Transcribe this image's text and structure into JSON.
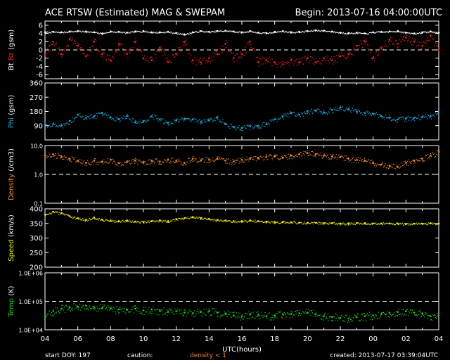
{
  "header": {
    "title": "ACE RTSW (Estimated) MAG & SWEPAM",
    "begin": "Begin: 2013-07-16 04:00:00UTC"
  },
  "footer": {
    "start_doy": "start DOY: 197",
    "caution": "caution:",
    "density_note": "density < 1",
    "created": "created: 2013-07-17 03:39:04UTC"
  },
  "colors": {
    "background": "#000000",
    "axes": "#ffffff",
    "bt": "#ffffff",
    "bz": "#ee2222",
    "phi": "#22aadd",
    "density": "#ee8833",
    "speed": "#eeee22",
    "temp": "#22cc22"
  },
  "chart_data": {
    "type": "scatter",
    "xlabel": "UTC(hours)",
    "x_tick_labels": [
      "04",
      "06",
      "08",
      "10",
      "12",
      "14",
      "16",
      "18",
      "20",
      "22",
      "00",
      "02",
      "04"
    ],
    "xlim_hours": [
      0,
      24
    ],
    "panels": [
      {
        "id": "mag",
        "ylabel_parts": [
          {
            "text": "Bt",
            "color": "#ffffff"
          },
          {
            "text": "Bz",
            "color": "#ee2222"
          },
          {
            "text": "(gsm)",
            "color": "#ffffff"
          }
        ],
        "scale": "linear",
        "ylim": [
          -7,
          7
        ],
        "y_ticks": [
          6,
          4,
          2,
          0,
          -2,
          -4,
          -6
        ],
        "y_tick_labels": [
          "6",
          "4",
          "2",
          "0",
          "-2",
          "-4",
          "-6"
        ],
        "ref_lines": [
          0
        ],
        "series": [
          {
            "name": "Bt",
            "color": "#ffffff",
            "x": [
              0,
              0.5,
              1,
              1.5,
              2,
              2.5,
              3,
              3.5,
              4,
              4.5,
              5,
              5.5,
              6,
              6.5,
              7,
              7.5,
              8,
              8.5,
              9,
              9.5,
              10,
              10.5,
              11,
              11.5,
              12,
              12.5,
              13,
              13.5,
              14,
              14.5,
              15,
              15.5,
              16,
              16.5,
              17,
              17.5,
              18,
              18.5,
              19,
              19.5,
              20,
              20.5,
              21,
              21.5,
              22,
              22.5,
              23,
              23.5,
              24
            ],
            "y": [
              4.3,
              4.4,
              4.3,
              4.5,
              4.6,
              4.5,
              4.3,
              4.0,
              4.5,
              4.4,
              4.2,
              4.5,
              4.6,
              4.3,
              4.3,
              4.4,
              4.1,
              3.8,
              4.3,
              4.6,
              4.4,
              4.6,
              4.7,
              4.5,
              4.3,
              4.6,
              4.2,
              4.1,
              4.4,
              4.6,
              4.3,
              4.4,
              4.6,
              4.8,
              4.7,
              4.5,
              4.2,
              4.1,
              4.2,
              4.0,
              4.3,
              4.4,
              4.5,
              4.6,
              4.2,
              4.0,
              4.3,
              4.5,
              4.2
            ]
          },
          {
            "name": "Bz",
            "color": "#ee2222",
            "x": [
              0,
              0.5,
              1,
              1.5,
              2,
              2.5,
              3,
              3.5,
              4,
              4.5,
              5,
              5.5,
              6,
              6.5,
              7,
              7.5,
              8,
              8.5,
              9,
              9.5,
              10,
              10.5,
              11,
              11.5,
              12,
              12.5,
              13,
              13.5,
              14,
              14.5,
              15,
              15.5,
              16,
              16.5,
              17,
              17.5,
              18,
              18.5,
              19,
              19.5,
              20,
              20.5,
              21,
              21.5,
              22,
              22.5,
              23,
              23.5,
              24
            ],
            "y": [
              -1.0,
              2.0,
              -1.0,
              2.5,
              1.0,
              -1.5,
              2.0,
              -1.0,
              -2.5,
              1.5,
              -1.0,
              2.0,
              -2.0,
              -2.5,
              0.5,
              -3.0,
              -1.0,
              2.0,
              -2.5,
              -3.0,
              -2.0,
              -1.0,
              1.5,
              -2.0,
              -1.0,
              2.0,
              -3.0,
              -2.5,
              -3.0,
              -3.5,
              -2.5,
              -3.0,
              -2.0,
              -3.0,
              -2.0,
              -2.5,
              -1.5,
              -1.0,
              1.0,
              2.0,
              -2.0,
              0.5,
              2.5,
              1.5,
              3.0,
              2.0,
              1.0,
              3.5,
              0.0
            ]
          }
        ]
      },
      {
        "id": "phi",
        "ylabel_parts": [
          {
            "text": "Phi",
            "color": "#22aadd"
          },
          {
            "text": "(gsm)",
            "color": "#ffffff"
          }
        ],
        "scale": "linear",
        "ylim": [
          0,
          360
        ],
        "y_ticks": [
          360,
          270,
          180,
          90
        ],
        "y_tick_labels": [
          "360",
          "270",
          "180",
          "90"
        ],
        "ref_lines": [],
        "series": [
          {
            "name": "Phi",
            "color": "#22aadd",
            "x": [
              0,
              0.5,
              1,
              1.5,
              2,
              2.5,
              3,
              3.5,
              4,
              4.5,
              5,
              5.5,
              6,
              6.5,
              7,
              7.5,
              8,
              8.5,
              9,
              9.5,
              10,
              10.5,
              11,
              11.5,
              12,
              12.5,
              13,
              13.5,
              14,
              14.5,
              15,
              15.5,
              16,
              16.5,
              17,
              17.5,
              18,
              18.5,
              19,
              19.5,
              20,
              20.5,
              21,
              21.5,
              22,
              22.5,
              23,
              23.5,
              24
            ],
            "y": [
              95,
              100,
              90,
              120,
              160,
              140,
              150,
              170,
              145,
              130,
              150,
              110,
              120,
              150,
              130,
              110,
              125,
              135,
              130,
              115,
              125,
              140,
              100,
              80,
              75,
              85,
              90,
              100,
              130,
              150,
              170,
              160,
              180,
              185,
              175,
              190,
              205,
              195,
              180,
              170,
              165,
              150,
              140,
              130,
              135,
              140,
              145,
              150,
              175
            ]
          }
        ]
      },
      {
        "id": "density",
        "ylabel_parts": [
          {
            "text": "Density",
            "color": "#ee8833"
          },
          {
            "text": "(/cm3)",
            "color": "#ffffff"
          }
        ],
        "scale": "log",
        "ylim": [
          0.1,
          10
        ],
        "y_ticks": [
          10,
          1,
          0.1
        ],
        "y_tick_labels": [
          "10.0",
          "1.0",
          "0.1"
        ],
        "ref_lines": [
          1
        ],
        "series": [
          {
            "name": "Density",
            "color": "#ee8833",
            "x": [
              0,
              0.5,
              1,
              1.5,
              2,
              2.5,
              3,
              3.5,
              4,
              4.5,
              5,
              5.5,
              6,
              6.5,
              7,
              7.5,
              8,
              8.5,
              9,
              9.5,
              10,
              10.5,
              11,
              11.5,
              12,
              12.5,
              13,
              13.5,
              14,
              14.5,
              15,
              15.5,
              16,
              16.5,
              17,
              17.5,
              18,
              18.5,
              19,
              19.5,
              20,
              20.5,
              21,
              21.5,
              22,
              22.5,
              23,
              23.5,
              24
            ],
            "y": [
              4.5,
              5.0,
              4.0,
              3.5,
              3.0,
              2.5,
              3.0,
              2.8,
              3.2,
              2.5,
              2.7,
              3.0,
              2.5,
              3.0,
              2.8,
              3.2,
              3.0,
              2.5,
              3.5,
              3.0,
              3.2,
              3.5,
              3.0,
              2.8,
              3.2,
              3.5,
              3.8,
              4.0,
              4.2,
              3.8,
              4.5,
              5.0,
              5.5,
              5.0,
              4.5,
              4.2,
              4.0,
              3.5,
              3.2,
              3.0,
              2.5,
              2.2,
              2.0,
              1.8,
              2.5,
              3.0,
              3.5,
              4.5,
              6.0
            ]
          }
        ]
      },
      {
        "id": "speed",
        "ylabel_parts": [
          {
            "text": "Speed",
            "color": "#eeee22"
          },
          {
            "text": "(km/s)",
            "color": "#ffffff"
          }
        ],
        "scale": "linear",
        "ylim": [
          200,
          400
        ],
        "y_ticks": [
          400,
          350,
          300,
          250,
          200
        ],
        "y_tick_labels": [
          "400",
          "350",
          "300",
          "250",
          "200"
        ],
        "ref_lines": [],
        "series": [
          {
            "name": "Speed",
            "color": "#eeee22",
            "x": [
              0,
              0.5,
              1,
              1.5,
              2,
              2.5,
              3,
              3.5,
              4,
              4.5,
              5,
              5.5,
              6,
              6.5,
              7,
              7.5,
              8,
              8.5,
              9,
              9.5,
              10,
              10.5,
              11,
              11.5,
              12,
              12.5,
              13,
              13.5,
              14,
              14.5,
              15,
              15.5,
              16,
              16.5,
              17,
              17.5,
              18,
              18.5,
              19,
              19.5,
              20,
              20.5,
              21,
              21.5,
              22,
              22.5,
              23,
              23.5,
              24
            ],
            "y": [
              380,
              390,
              385,
              375,
              368,
              362,
              370,
              362,
              360,
              358,
              360,
              356,
              355,
              358,
              360,
              358,
              365,
              368,
              372,
              368,
              365,
              362,
              360,
              358,
              358,
              360,
              358,
              356,
              355,
              355,
              354,
              353,
              352,
              352,
              351,
              351,
              350,
              350,
              351,
              351,
              350,
              350,
              350,
              350,
              349,
              349,
              349,
              350,
              349
            ]
          }
        ]
      },
      {
        "id": "temp",
        "ylabel_parts": [
          {
            "text": "Temp",
            "color": "#22cc22"
          },
          {
            "text": "(K)",
            "color": "#ffffff"
          }
        ],
        "scale": "log",
        "ylim": [
          10000,
          1000000
        ],
        "y_ticks": [
          1000000,
          100000,
          10000
        ],
        "y_tick_labels": [
          "1.0E+06",
          "1.0E+05",
          "1.0E+04"
        ],
        "ref_lines": [
          100000
        ],
        "series": [
          {
            "name": "Temp",
            "color": "#22cc22",
            "x": [
              0,
              0.5,
              1,
              1.5,
              2,
              2.5,
              3,
              3.5,
              4,
              4.5,
              5,
              5.5,
              6,
              6.5,
              7,
              7.5,
              8,
              8.5,
              9,
              9.5,
              10,
              10.5,
              11,
              11.5,
              12,
              12.5,
              13,
              13.5,
              14,
              14.5,
              15,
              15.5,
              16,
              16.5,
              17,
              17.5,
              18,
              18.5,
              19,
              19.5,
              20,
              20.5,
              21,
              21.5,
              22,
              22.5,
              23,
              23.5,
              24
            ],
            "y": [
              30000,
              45000,
              55000,
              60000,
              65000,
              70000,
              62000,
              58000,
              55000,
              52000,
              50000,
              55000,
              48000,
              52000,
              46000,
              42000,
              45000,
              40000,
              38000,
              42000,
              45000,
              40000,
              38000,
              32000,
              30000,
              35000,
              33000,
              30000,
              32000,
              35000,
              36000,
              38000,
              40000,
              35000,
              30000,
              28000,
              26000,
              25000,
              28000,
              30000,
              32000,
              35000,
              40000,
              42000,
              45000,
              40000,
              38000,
              30000,
              32000
            ]
          }
        ]
      }
    ]
  }
}
